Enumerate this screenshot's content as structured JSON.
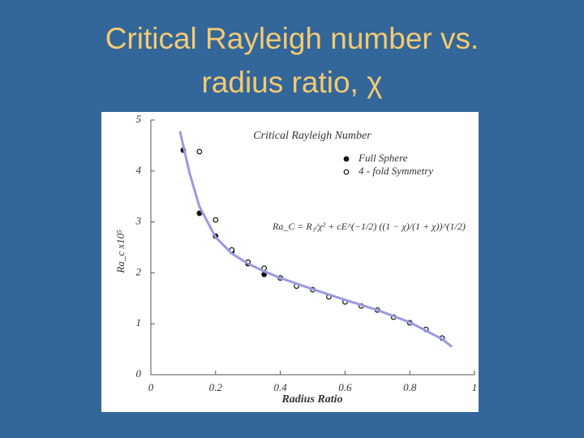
{
  "slide_title": [
    "Critical Rayleigh number vs.",
    "radius ratio, χ"
  ],
  "chart_data": {
    "type": "scatter",
    "title": "Critical Rayleigh Number",
    "x_label": "Radius Ratio",
    "y_label": "Ra_c x10⁵",
    "annotation": "Ra_C = R₁/χ² + cE^(−1/2) ((1 − χ)/(1 + χ))^(1/2)",
    "xlim": [
      0,
      1
    ],
    "ylim": [
      0,
      5
    ],
    "xticks": [
      0,
      0.2,
      0.4,
      0.6,
      0.8,
      1
    ],
    "yticks": [
      0,
      1,
      2,
      3,
      4,
      5
    ],
    "legend": "upper right",
    "series": [
      {
        "name": "Full Sphere",
        "type": "scatter",
        "marker": "filled",
        "color": "#111111",
        "x": [
          0.1,
          0.15,
          0.2,
          0.25,
          0.3,
          0.35
        ],
        "values": [
          4.41,
          3.17,
          2.72,
          2.42,
          2.18,
          1.97
        ]
      },
      {
        "name": "4 - fold Symmetry",
        "type": "scatter",
        "marker": "open",
        "color": "#111111",
        "x": [
          0.15,
          0.2,
          0.25,
          0.3,
          0.35,
          0.4,
          0.45,
          0.5,
          0.55,
          0.6,
          0.65,
          0.7,
          0.75,
          0.8,
          0.85,
          0.9
        ],
        "values": [
          4.38,
          3.04,
          2.45,
          2.21,
          2.09,
          1.9,
          1.74,
          1.67,
          1.53,
          1.43,
          1.35,
          1.27,
          1.13,
          1.02,
          0.89,
          0.72
        ]
      },
      {
        "type": "line",
        "color": "#9a9ade",
        "x": [
          0.09,
          0.1,
          0.12,
          0.15,
          0.2,
          0.25,
          0.3,
          0.35,
          0.4,
          0.5,
          0.6,
          0.7,
          0.8,
          0.9,
          0.93
        ],
        "values": [
          4.78,
          4.5,
          3.95,
          3.3,
          2.7,
          2.38,
          2.18,
          2.03,
          1.9,
          1.68,
          1.47,
          1.27,
          1.03,
          0.7,
          0.55
        ]
      }
    ]
  }
}
